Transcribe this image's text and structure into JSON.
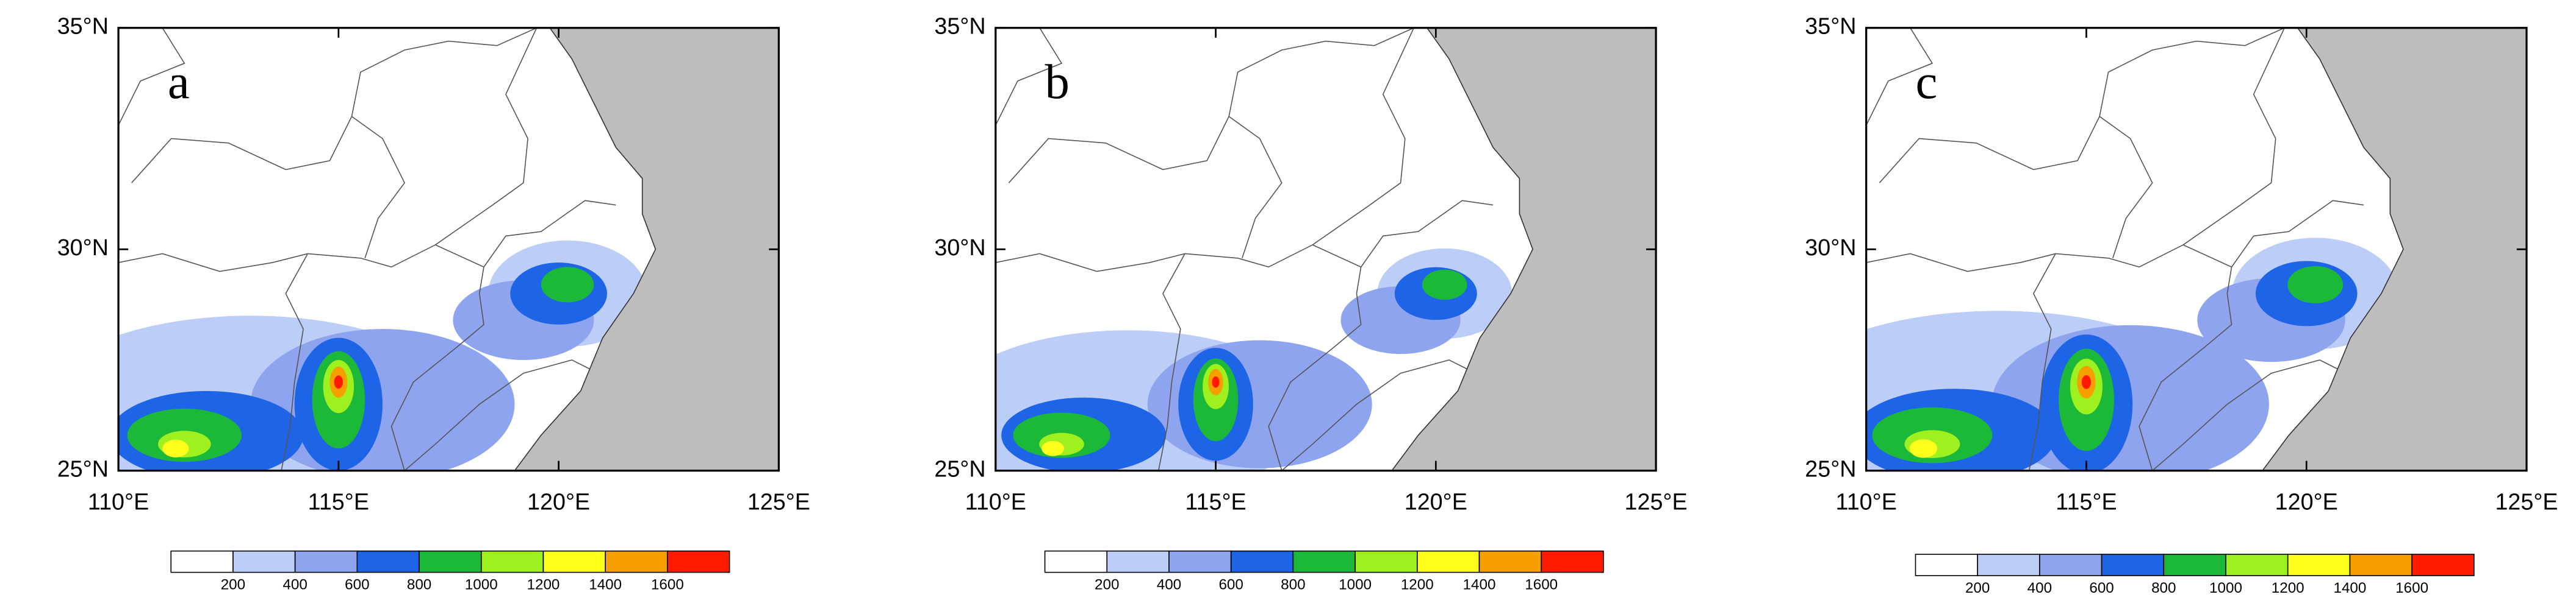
{
  "panels": [
    {
      "label": "a"
    },
    {
      "label": "b"
    },
    {
      "label": "c"
    }
  ],
  "x_axis": {
    "ticks": [
      {
        "value": 110,
        "label": "110°E"
      },
      {
        "value": 115,
        "label": "115°E"
      },
      {
        "value": 120,
        "label": "120°E"
      },
      {
        "value": 125,
        "label": "125°E"
      }
    ]
  },
  "y_axis": {
    "ticks": [
      {
        "value": 25,
        "label": "25°N"
      },
      {
        "value": 30,
        "label": "30°N"
      },
      {
        "value": 35,
        "label": "35°N"
      }
    ]
  },
  "colorbar": {
    "levels": [
      200,
      400,
      600,
      800,
      1000,
      1200,
      1400,
      1600
    ],
    "colors": [
      "#ffffff",
      "#bccdf7",
      "#8ea4ee",
      "#1e64e6",
      "#1bb83a",
      "#9ef01e",
      "#ffff1e",
      "#f5a000",
      "#ff1a00"
    ]
  }
}
